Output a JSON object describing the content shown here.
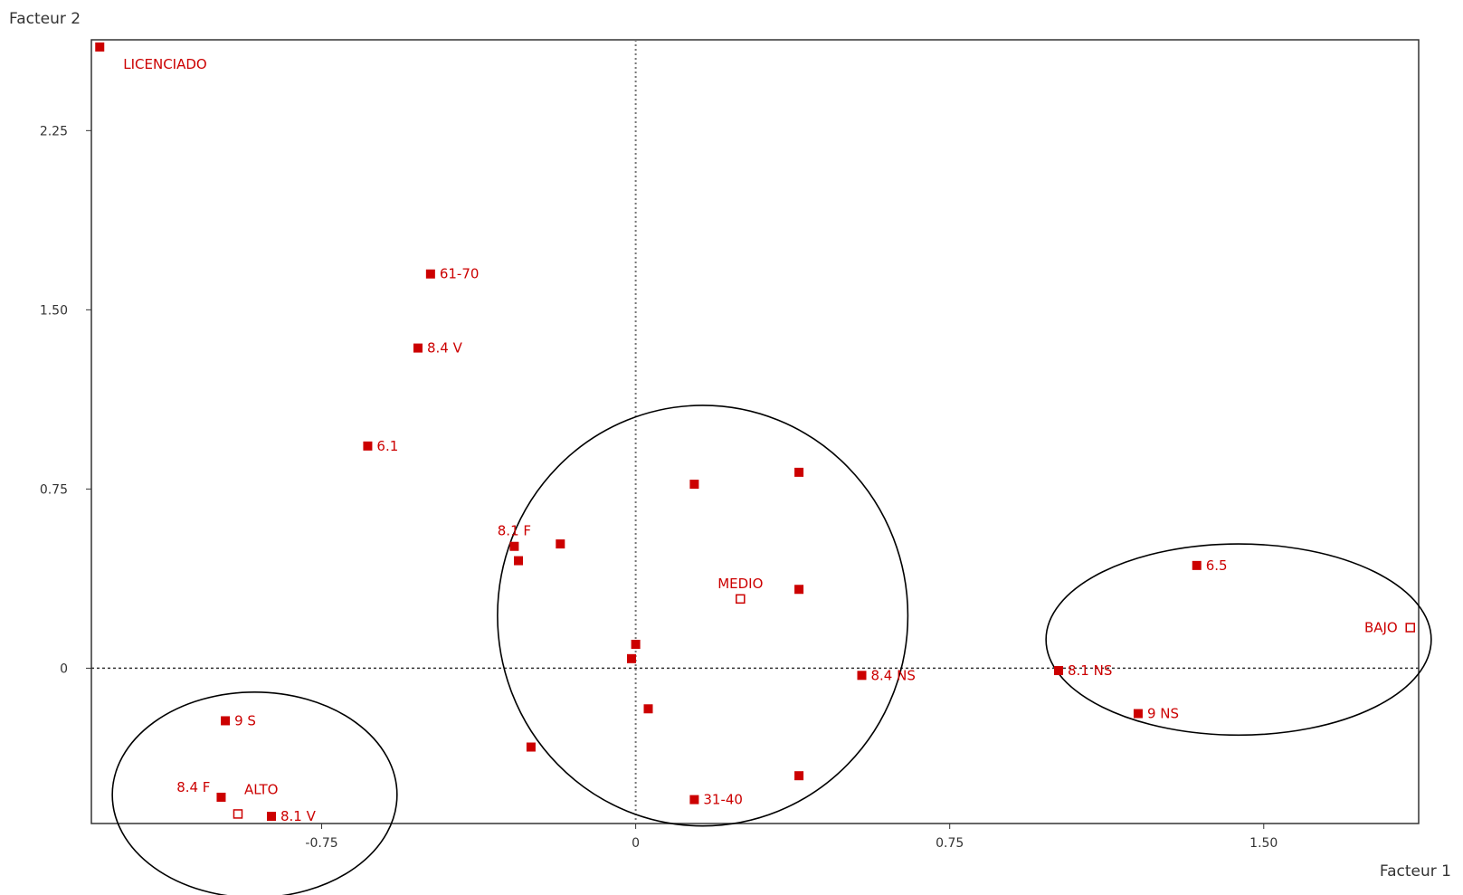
{
  "chart_data": {
    "type": "scatter",
    "xlabel": "Facteur 1",
    "ylabel": "Facteur 2",
    "xlim": [
      -1.3,
      1.87
    ],
    "ylim": [
      -0.65,
      2.63
    ],
    "xticks": [
      {
        "value": -0.75,
        "label": "-0.75"
      },
      {
        "value": 0,
        "label": "0"
      },
      {
        "value": 0.75,
        "label": "0.75"
      },
      {
        "value": 1.5,
        "label": "1.50"
      }
    ],
    "yticks": [
      {
        "value": 0,
        "label": "0"
      },
      {
        "value": 0.75,
        "label": "0.75"
      },
      {
        "value": 1.5,
        "label": "1.50"
      },
      {
        "value": 2.25,
        "label": "2.25"
      }
    ],
    "grid": false,
    "reference_lines": {
      "x": 0,
      "y": 0,
      "style": "dotted"
    },
    "colors": {
      "points": "#cc0000",
      "frame": "#333333",
      "circles": "#000000"
    },
    "points": [
      {
        "x": -1.28,
        "y": 2.6,
        "label": "LICENCIADO",
        "marker": "filled",
        "label_pos": "below-right"
      },
      {
        "x": -0.49,
        "y": 1.65,
        "label": "61-70",
        "marker": "filled",
        "label_pos": "right"
      },
      {
        "x": -0.52,
        "y": 1.34,
        "label": "8.4 V",
        "marker": "filled",
        "label_pos": "right"
      },
      {
        "x": -0.64,
        "y": 0.93,
        "label": "6.1",
        "marker": "filled",
        "label_pos": "right"
      },
      {
        "x": -0.29,
        "y": 0.51,
        "label": "8.1 F",
        "marker": "filled",
        "label_pos": "above"
      },
      {
        "x": -0.28,
        "y": 0.45,
        "label": "",
        "marker": "filled"
      },
      {
        "x": -0.18,
        "y": 0.52,
        "label": "",
        "marker": "filled"
      },
      {
        "x": 0.14,
        "y": 0.77,
        "label": "",
        "marker": "filled"
      },
      {
        "x": 0.39,
        "y": 0.82,
        "label": "",
        "marker": "filled"
      },
      {
        "x": 0.25,
        "y": 0.29,
        "label": "MEDIO",
        "marker": "open",
        "label_pos": "above"
      },
      {
        "x": 0.39,
        "y": 0.33,
        "label": "",
        "marker": "filled"
      },
      {
        "x": 0.0,
        "y": 0.1,
        "label": "",
        "marker": "filled"
      },
      {
        "x": -0.01,
        "y": 0.04,
        "label": "",
        "marker": "filled"
      },
      {
        "x": 0.03,
        "y": -0.17,
        "label": "",
        "marker": "filled"
      },
      {
        "x": -0.25,
        "y": -0.33,
        "label": "",
        "marker": "filled"
      },
      {
        "x": 0.39,
        "y": -0.45,
        "label": "",
        "marker": "filled"
      },
      {
        "x": 0.14,
        "y": -0.55,
        "label": "31-40",
        "marker": "filled",
        "label_pos": "right"
      },
      {
        "x": 0.54,
        "y": -0.03,
        "label": "8.4 NS",
        "marker": "filled",
        "label_pos": "right"
      },
      {
        "x": 1.01,
        "y": -0.01,
        "label": "8.1 NS",
        "marker": "filled",
        "label_pos": "right"
      },
      {
        "x": 1.2,
        "y": -0.19,
        "label": "9 NS",
        "marker": "filled",
        "label_pos": "right"
      },
      {
        "x": 1.34,
        "y": 0.43,
        "label": "6.5",
        "marker": "filled",
        "label_pos": "right"
      },
      {
        "x": 1.85,
        "y": 0.17,
        "label": "BAJO",
        "marker": "open",
        "label_pos": "left"
      },
      {
        "x": -0.98,
        "y": -0.22,
        "label": "9 S",
        "marker": "filled",
        "label_pos": "right"
      },
      {
        "x": -0.99,
        "y": -0.54,
        "label": "8.4 F",
        "marker": "filled",
        "label_pos": "above-left"
      },
      {
        "x": -0.95,
        "y": -0.61,
        "label": "ALTO",
        "marker": "open",
        "label_pos": "above-right"
      },
      {
        "x": -0.87,
        "y": -0.62,
        "label": "8.1 V",
        "marker": "filled",
        "label_pos": "right"
      }
    ],
    "circles": [
      {
        "cx": 0.16,
        "cy": 0.22,
        "rx": 0.49,
        "ry": 0.88
      },
      {
        "cx": 1.44,
        "cy": 0.12,
        "rx": 0.46,
        "ry": 0.4
      },
      {
        "cx": -0.91,
        "cy": -0.53,
        "rx": 0.34,
        "ry": 0.43
      }
    ]
  }
}
